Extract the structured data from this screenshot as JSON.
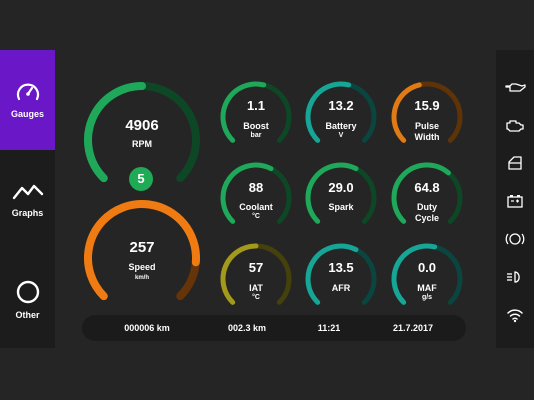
{
  "nav": {
    "items": [
      {
        "label": "Gauges",
        "icon": "gauge-icon",
        "active": true
      },
      {
        "label": "Graphs",
        "icon": "graph-icon",
        "active": false
      },
      {
        "label": "Other",
        "icon": "circle-icon",
        "active": false
      }
    ]
  },
  "gear": "5",
  "gauges": {
    "rpm": {
      "value": "4906",
      "label": "RPM",
      "unit": "",
      "fill": 0.5,
      "color": "#1fa85a"
    },
    "speed": {
      "value": "257",
      "label": "Speed",
      "unit": "km/h",
      "fill": 0.85,
      "color": "#f07b13"
    },
    "boost": {
      "value": "1.1",
      "label": "Boost",
      "unit": "bar",
      "fill": 0.55,
      "color": "#1fa85a"
    },
    "battery": {
      "value": "13.2",
      "label": "Battery",
      "unit": "V",
      "fill": 0.55,
      "color": "#17a596"
    },
    "pulse": {
      "value": "15.9",
      "label": "Pulse",
      "label2": "Width",
      "unit": "",
      "fill": 0.45,
      "color": "#e07a14"
    },
    "coolant": {
      "value": "88",
      "label": "Coolant",
      "unit": "°C",
      "fill": 0.6,
      "color": "#1fa85a"
    },
    "spark": {
      "value": "29.0",
      "label": "Spark",
      "unit": "",
      "fill": 0.6,
      "color": "#1fa85a"
    },
    "duty": {
      "value": "64.8",
      "label": "Duty",
      "label2": "Cycle",
      "unit": "",
      "fill": 0.65,
      "color": "#1fa85a"
    },
    "iat": {
      "value": "57",
      "label": "IAT",
      "unit": "°C",
      "fill": 0.5,
      "color": "#a39a1c"
    },
    "afr": {
      "value": "13.5",
      "label": "AFR",
      "unit": "",
      "fill": 0.6,
      "color": "#17a596"
    },
    "maf": {
      "value": "0.0",
      "label": "MAF",
      "unit": "g/s",
      "fill": 0.55,
      "color": "#17a596"
    }
  },
  "status": {
    "odometer": "000006  km",
    "trip": "002.3  km",
    "time": "11:21",
    "date": "21.7.2017"
  },
  "right_icons": [
    "oil-can-icon",
    "engine-icon",
    "door-icon",
    "battery-icon",
    "brake-icon",
    "headlight-icon",
    "wifi-icon"
  ]
}
